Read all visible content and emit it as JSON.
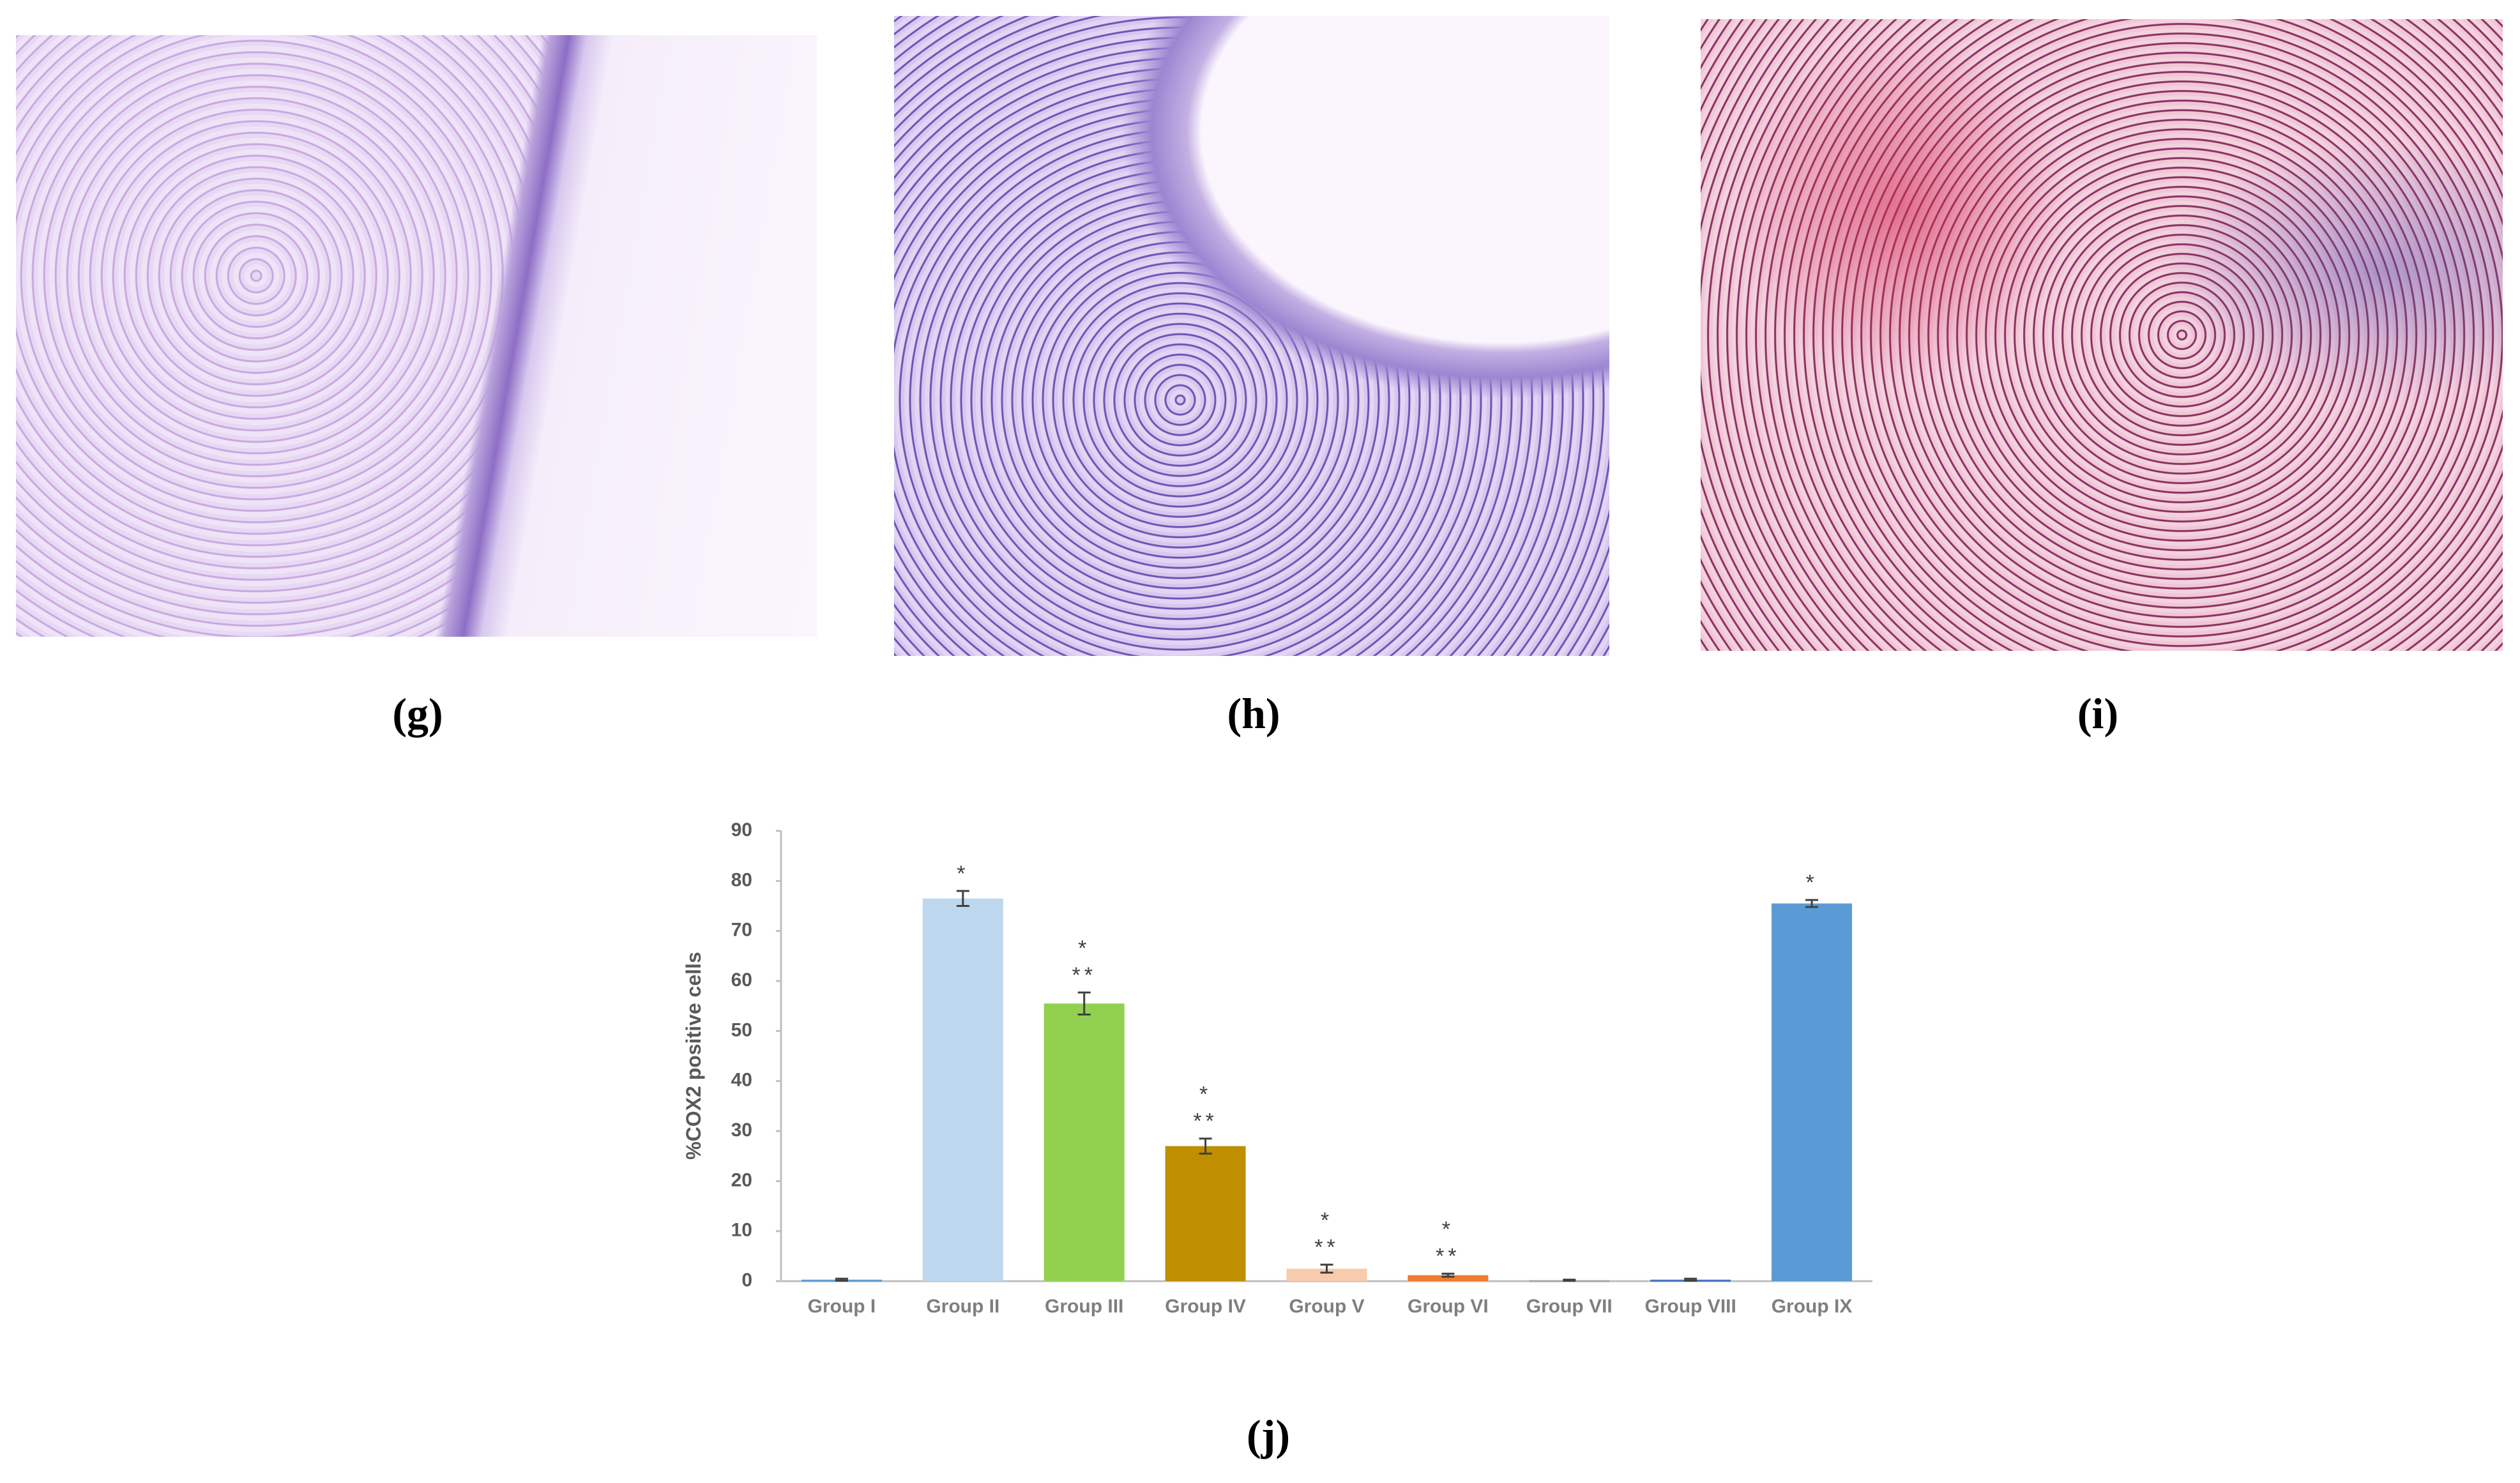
{
  "panels": [
    {
      "label": "(g)"
    },
    {
      "label": "(h)"
    },
    {
      "label": "(i)"
    }
  ],
  "chart_data": {
    "type": "bar",
    "label": "(j)",
    "ylabel": "%COX2 positive cells",
    "categories": [
      "Group I",
      "Group II",
      "Group III",
      "Group IV",
      "Group V",
      "Group VI",
      "Group VII",
      "Group VIII",
      "Group IX"
    ],
    "values": [
      0.3,
      76.5,
      55.5,
      27,
      2.5,
      1.2,
      0.2,
      0.3,
      75.5
    ],
    "errors": [
      0.2,
      1.5,
      2.2,
      1.5,
      0.8,
      0.3,
      0.1,
      0.2,
      0.7
    ],
    "colors": [
      "#5b9bd5",
      "#bdd7ee",
      "#92d050",
      "#bf8f00",
      "#f8cbad",
      "#ed7d31",
      "#a5a5a5",
      "#4472c4",
      "#5b9bd5"
    ],
    "significance": [
      null,
      [
        "*"
      ],
      [
        "*",
        "**"
      ],
      [
        "*",
        "**"
      ],
      [
        "*",
        "**"
      ],
      [
        "*",
        "**"
      ],
      null,
      null,
      [
        "*"
      ]
    ],
    "ylim": [
      0,
      90
    ],
    "yticks": [
      0,
      10,
      20,
      30,
      40,
      50,
      60,
      70,
      80,
      90
    ],
    "grid": false
  }
}
